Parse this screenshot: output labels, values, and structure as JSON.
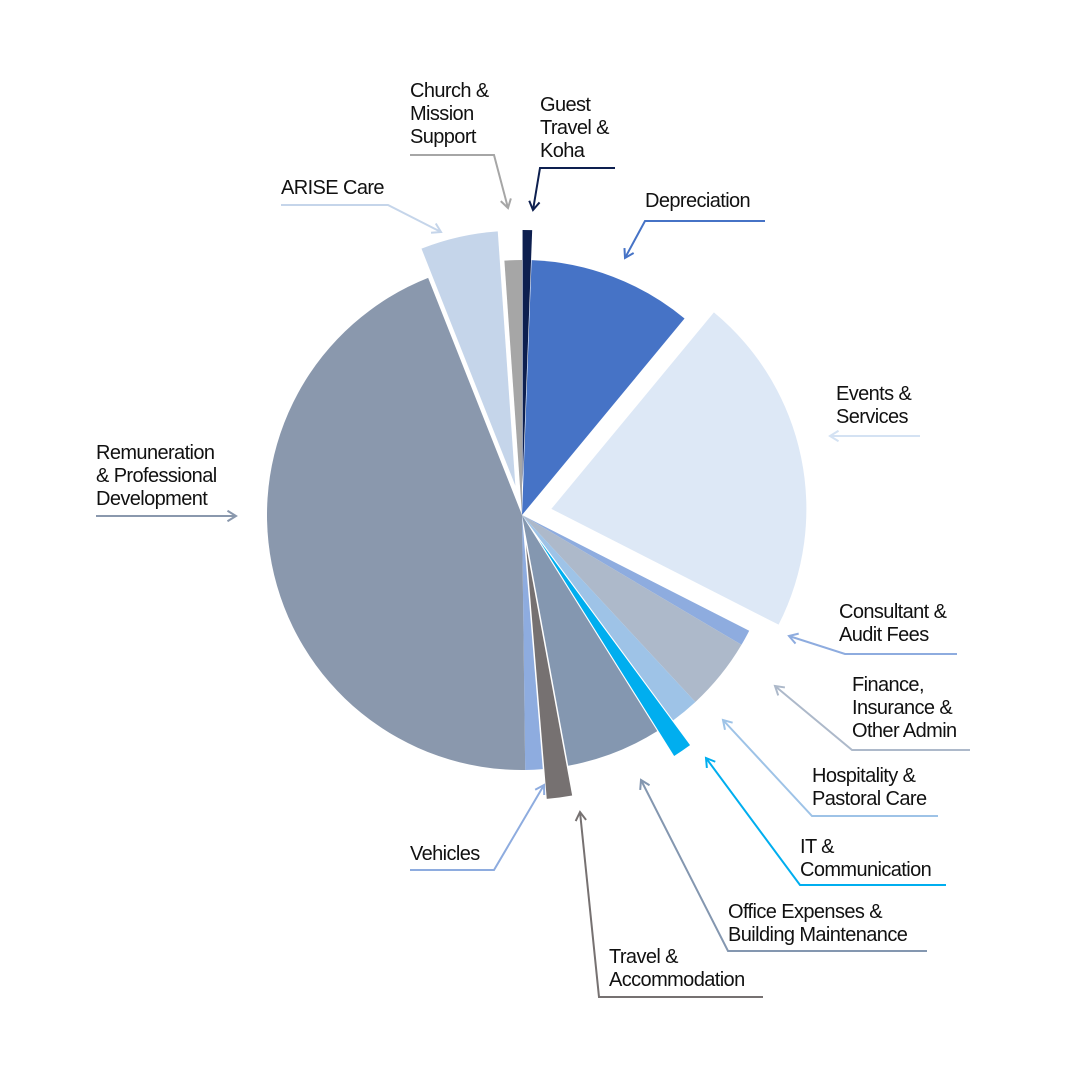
{
  "chart_data": {
    "type": "pie",
    "title": "",
    "labels_outside": true,
    "slices": [
      {
        "label": "Guest Travel & Koha",
        "label_lines": [
          "Guest",
          "Travel &",
          "Koha"
        ],
        "value": 0.6,
        "color": "#0d1f4f",
        "exploded": true
      },
      {
        "label": "Depreciation",
        "label_lines": [
          "Depreciation"
        ],
        "value": 10.4,
        "color": "#4673c6",
        "exploded": false
      },
      {
        "label": "Events & Services",
        "label_lines": [
          "Events &",
          "Services"
        ],
        "value": 21.5,
        "color": "#dde8f6",
        "exploded": true
      },
      {
        "label": "Consultant & Audit Fees",
        "label_lines": [
          "Consultant &",
          "Audit Fees"
        ],
        "value": 1.0,
        "color": "#8eacdf",
        "exploded": false
      },
      {
        "label": "Finance, Insurance & Other Admin",
        "label_lines": [
          "Finance,",
          "Insurance &",
          "Other Admin"
        ],
        "value": 4.6,
        "color": "#adb9ca",
        "exploded": false
      },
      {
        "label": "Hospitality & Pastoral Care",
        "label_lines": [
          "Hospitality &",
          "Pastoral Care"
        ],
        "value": 1.8,
        "color": "#9ec3e7",
        "exploded": false
      },
      {
        "label": "IT & Communication",
        "label_lines": [
          "IT &",
          "Communication"
        ],
        "value": 1.2,
        "color": "#00aeef",
        "exploded": true
      },
      {
        "label": "Office Expenses & Building Maintenance",
        "label_lines": [
          "Office Expenses &",
          "Building Maintenance"
        ],
        "value": 6.0,
        "color": "#8497b0",
        "exploded": false
      },
      {
        "label": "Travel & Accommodation",
        "label_lines": [
          "Travel &",
          "Accommodation"
        ],
        "value": 1.6,
        "color": "#767171",
        "exploded": true
      },
      {
        "label": "Vehicles",
        "label_lines": [
          "Vehicles"
        ],
        "value": 1.1,
        "color": "#8eacdf",
        "exploded": false
      },
      {
        "label": "Remuneration & Professional Development",
        "label_lines": [
          "Remuneration",
          "& Professional",
          "Development"
        ],
        "value": 44.2,
        "color": "#8a98ad",
        "exploded": false
      },
      {
        "label": "ARISE Care",
        "label_lines": [
          "ARISE Care"
        ],
        "value": 4.9,
        "color": "#c5d5ea",
        "exploded": true
      },
      {
        "label": "Church & Mission Support",
        "label_lines": [
          "Church &",
          "Mission",
          "Support"
        ],
        "value": 1.1,
        "color": "#a6a6a6",
        "exploded": false
      }
    ]
  }
}
